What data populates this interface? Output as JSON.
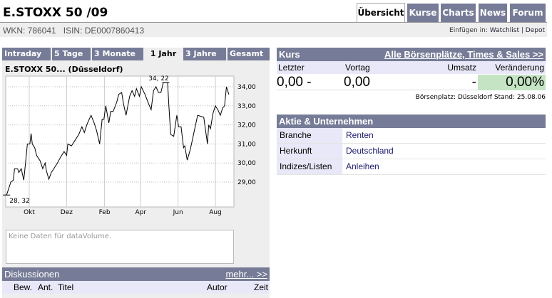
{
  "header": {
    "title": "E.STOXX 50 /09",
    "wkn": "WKN: 786041",
    "isin": "ISIN: DE0007860413",
    "insert_label": "Einfügen in:",
    "watchlist": "Watchlist",
    "sep": "|",
    "depot": "Depot"
  },
  "nav_tabs": [
    {
      "label": "Übersicht",
      "active": true
    },
    {
      "label": "Kurse"
    },
    {
      "label": "Charts"
    },
    {
      "label": "News"
    },
    {
      "label": "Forum"
    }
  ],
  "chart_tabs": [
    {
      "label": "Intraday"
    },
    {
      "label": "5 Tage"
    },
    {
      "label": "3 Monate"
    },
    {
      "label": "1 Jahr",
      "active": true
    },
    {
      "label": "3 Jahre"
    },
    {
      "label": "Gesamt"
    }
  ],
  "chart_title": "E.STOXX 50... (Düsseldorf)",
  "chart_data": {
    "type": "line",
    "title": "E.STOXX 50... (Düsseldorf)",
    "x_tick_labels": [
      "Okt",
      "Dez",
      "Feb",
      "Apr",
      "Jun",
      "Aug"
    ],
    "x_ticks": [
      "2005-10-01",
      "2005-12-01",
      "2006-02-01",
      "2006-04-01",
      "2006-06-01",
      "2006-08-01"
    ],
    "y_tick_labels": [
      "34,00",
      "33,00",
      "32,00",
      "31,00",
      "30,00",
      "29,00"
    ],
    "y_ticks": [
      34,
      33,
      32,
      31,
      30,
      29
    ],
    "ylim": [
      28.1,
      34.4
    ],
    "grid": true,
    "annotations": [
      {
        "label": "34, 22",
        "x": "2006-05-12",
        "y": 34.22
      },
      {
        "label": "28, 32",
        "x": "2005-08-25",
        "y": 28.32
      }
    ],
    "series": [
      {
        "points": [
          [
            "2005-08-25",
            28.32
          ],
          [
            "2005-09-01",
            29.0
          ],
          [
            "2005-09-05",
            29.1
          ],
          [
            "2005-09-07",
            29.7
          ],
          [
            "2005-09-12",
            29.7
          ],
          [
            "2005-09-14",
            29.5
          ],
          [
            "2005-09-18",
            29.7
          ],
          [
            "2005-09-22",
            29.1
          ],
          [
            "2005-09-25",
            30.0
          ],
          [
            "2005-09-28",
            31.0
          ],
          [
            "2005-10-02",
            31.0
          ],
          [
            "2005-10-04",
            31.55
          ],
          [
            "2005-10-06",
            31.0
          ],
          [
            "2005-10-10",
            30.8
          ],
          [
            "2005-10-13",
            30.4
          ],
          [
            "2005-10-19",
            30.1
          ],
          [
            "2005-10-23",
            29.7
          ],
          [
            "2005-10-27",
            30.0
          ],
          [
            "2005-10-29",
            29.6
          ],
          [
            "2005-11-02",
            29.15
          ],
          [
            "2005-11-06",
            29.5
          ],
          [
            "2005-11-12",
            29.8
          ],
          [
            "2005-11-16",
            30.0
          ],
          [
            "2005-11-21",
            30.3
          ],
          [
            "2005-11-27",
            30.6
          ],
          [
            "2005-12-01",
            30.4
          ],
          [
            "2005-12-03",
            31.0
          ],
          [
            "2005-12-09",
            30.9
          ],
          [
            "2005-12-13",
            31.1
          ],
          [
            "2005-12-21",
            31.5
          ],
          [
            "2005-12-26",
            31.9
          ],
          [
            "2005-12-30",
            31.6
          ],
          [
            "2006-01-03",
            32.0
          ],
          [
            "2006-01-07",
            32.3
          ],
          [
            "2006-01-10",
            32.5
          ],
          [
            "2006-01-15",
            32.1
          ],
          [
            "2006-01-19",
            31.7
          ],
          [
            "2006-01-24",
            31.0
          ],
          [
            "2006-01-28",
            32.3
          ],
          [
            "2006-01-31",
            32.3
          ],
          [
            "2006-02-03",
            33.0
          ],
          [
            "2006-02-08",
            32.1
          ],
          [
            "2006-02-11",
            32.7
          ],
          [
            "2006-02-15",
            32.7
          ],
          [
            "2006-02-21",
            33.2
          ],
          [
            "2006-02-24",
            33.6
          ],
          [
            "2006-03-01",
            33.7
          ],
          [
            "2006-03-04",
            33.1
          ],
          [
            "2006-03-08",
            32.5
          ],
          [
            "2006-03-14",
            33.5
          ],
          [
            "2006-03-18",
            33.8
          ],
          [
            "2006-03-22",
            33.5
          ],
          [
            "2006-03-25",
            33.9
          ],
          [
            "2006-03-30",
            33.5
          ],
          [
            "2006-04-02",
            34.0
          ],
          [
            "2006-04-08",
            33.6
          ],
          [
            "2006-04-14",
            33.1
          ],
          [
            "2006-04-18",
            32.8
          ],
          [
            "2006-04-22",
            33.8
          ],
          [
            "2006-04-26",
            34.0
          ],
          [
            "2006-04-30",
            33.7
          ],
          [
            "2006-05-04",
            33.7
          ],
          [
            "2006-05-08",
            34.22
          ],
          [
            "2006-05-15",
            34.22
          ],
          [
            "2006-05-17",
            33.0
          ],
          [
            "2006-05-20",
            31.5
          ],
          [
            "2006-05-25",
            31.4
          ],
          [
            "2006-05-30",
            32.5
          ],
          [
            "2006-06-02",
            31.9
          ],
          [
            "2006-06-06",
            31.9
          ],
          [
            "2006-06-10",
            30.8
          ],
          [
            "2006-06-12",
            30.9
          ],
          [
            "2006-06-16",
            30.15
          ],
          [
            "2006-06-21",
            30.7
          ],
          [
            "2006-07-03",
            32.5
          ],
          [
            "2006-07-13",
            32.4
          ],
          [
            "2006-07-19",
            31.0
          ],
          [
            "2006-07-21",
            32.0
          ],
          [
            "2006-07-24",
            31.8
          ],
          [
            "2006-07-28",
            32.6
          ],
          [
            "2006-08-01",
            33.0
          ],
          [
            "2006-08-05",
            32.8
          ],
          [
            "2006-08-09",
            32.5
          ],
          [
            "2006-08-13",
            32.9
          ],
          [
            "2006-08-16",
            33.0
          ],
          [
            "2006-08-19",
            34.0
          ],
          [
            "2006-08-23",
            33.6
          ]
        ]
      }
    ]
  },
  "volume_message": "Keine Daten für dataVolume.",
  "discussions": {
    "title": "Diskussionen",
    "more": "mehr... >>",
    "columns": [
      "Bew.",
      "Ant.",
      "Titel",
      "Autor",
      "Zeit"
    ]
  },
  "kurs": {
    "title": "Kurs",
    "link": "Alle Börsenplätze, Times & Sales >>",
    "labels": {
      "letzter": "Letzter",
      "vortag": "Vortag",
      "umsatz": "Umsatz",
      "veraenderung": "Veränderung"
    },
    "values": {
      "letzter": "0,00 -",
      "vortag": "0,00",
      "umsatz": "-",
      "veraenderung": "0,00%"
    },
    "stand": "Börsenplatz: Düsseldorf Stand: 25.08.06",
    "change_color": "#c4e4c4"
  },
  "aktie": {
    "title": "Aktie & Unternehmen",
    "rows": [
      {
        "label": "Branche",
        "value": "Renten"
      },
      {
        "label": "Herkunft",
        "value": "Deutschland"
      },
      {
        "label": "Indizes/Listen",
        "value": "Anleihen"
      }
    ]
  }
}
